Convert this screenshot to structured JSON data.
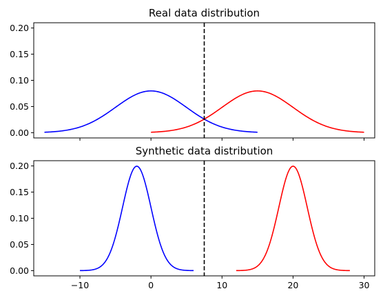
{
  "chart_data": [
    {
      "type": "line",
      "title": "Real data distribution",
      "xlabel": "",
      "ylabel": "",
      "xlim": [
        -16.5,
        31.5
      ],
      "ylim": [
        -0.01,
        0.21
      ],
      "yticks": [
        0.0,
        0.05,
        0.1,
        0.15,
        0.2
      ],
      "ytick_labels": [
        "0.00",
        "0.05",
        "0.10",
        "0.15",
        "0.20"
      ],
      "xticks": [
        -10,
        0,
        10,
        20,
        30
      ],
      "xtick_labels_shown": false,
      "grid": false,
      "series": [
        {
          "color": "#0000ff",
          "distribution": "normal",
          "mean": 0,
          "std": 5,
          "x_range": [
            -15,
            15
          ]
        },
        {
          "color": "#ff0000",
          "distribution": "normal",
          "mean": 15,
          "std": 5,
          "x_range": [
            0,
            30
          ]
        }
      ],
      "vline": {
        "x": 7.5,
        "style": "dashed",
        "color": "#000000"
      }
    },
    {
      "type": "line",
      "title": "Synthetic data distribution",
      "xlabel": "",
      "ylabel": "",
      "xlim": [
        -16.5,
        31.5
      ],
      "ylim": [
        -0.01,
        0.21
      ],
      "yticks": [
        0.0,
        0.05,
        0.1,
        0.15,
        0.2
      ],
      "ytick_labels": [
        "0.00",
        "0.05",
        "0.10",
        "0.15",
        "0.20"
      ],
      "xticks": [
        -10,
        0,
        10,
        20,
        30
      ],
      "xtick_labels": [
        "−10",
        "0",
        "10",
        "20",
        "30"
      ],
      "grid": false,
      "series": [
        {
          "color": "#0000ff",
          "distribution": "normal",
          "mean": -2,
          "std": 2,
          "x_range": [
            -10,
            6
          ]
        },
        {
          "color": "#ff0000",
          "distribution": "normal",
          "mean": 20,
          "std": 2,
          "x_range": [
            12,
            28
          ]
        }
      ],
      "vline": {
        "x": 7.5,
        "style": "dashed",
        "color": "#000000"
      }
    }
  ]
}
